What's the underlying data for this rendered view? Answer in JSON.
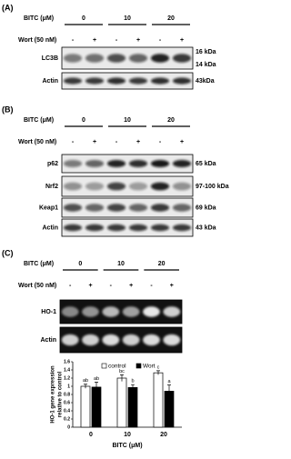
{
  "panels": [
    {
      "label": "(A)",
      "bitc_label": "BITC (μM)",
      "doses": [
        "0",
        "10",
        "20"
      ],
      "wort_label": "Wort (50 nM)",
      "wort_signs": [
        "-",
        "+",
        "-",
        "+",
        "-",
        "+"
      ],
      "blots": [
        {
          "name": "LC3B",
          "sizes": [
            "16 kDa",
            "14 kDa"
          ]
        },
        {
          "name": "Actin",
          "sizes": [
            "43kDa"
          ]
        }
      ]
    },
    {
      "label": "(B)",
      "bitc_label": "BITC (μM)",
      "doses": [
        "0",
        "10",
        "20"
      ],
      "wort_label": "Wort (50 nM)",
      "wort_signs": [
        "-",
        "+",
        "-",
        "+",
        "-",
        "+"
      ],
      "blots": [
        {
          "name": "p62",
          "sizes": [
            "65 kDa"
          ]
        },
        {
          "name": "Nrf2",
          "sizes": [
            "97-100 kDa"
          ]
        },
        {
          "name": "Keap1",
          "sizes": [
            "69 kDa"
          ]
        },
        {
          "name": "Actin",
          "sizes": [
            "43 kDa"
          ]
        }
      ]
    },
    {
      "label": "(C)",
      "bitc_label": "BITC (μM)",
      "doses": [
        "0",
        "10",
        "20"
      ],
      "wort_label": "Wort (50 nM)",
      "wort_signs": [
        "-",
        "+",
        "-",
        "+",
        "-",
        "+"
      ],
      "blots": [
        {
          "name": "HO-1"
        },
        {
          "name": "Actin"
        }
      ]
    }
  ],
  "chart_data": {
    "type": "bar",
    "categories": [
      "0",
      "10",
      "20"
    ],
    "xlabel": "BITC (μM)",
    "ylabel": [
      "HO-1 gene expression",
      "relative to control"
    ],
    "ylim": [
      0,
      1.6
    ],
    "yticks": [
      0,
      0.2,
      0.4,
      0.6,
      0.8,
      1,
      1.2,
      1.4,
      1.6
    ],
    "series": [
      {
        "name": "control",
        "color": "#ffffff",
        "values": [
          1.0,
          1.2,
          1.33
        ],
        "errors": [
          0.05,
          0.08,
          0.05
        ],
        "letters": [
          "ab",
          "bc",
          "c"
        ]
      },
      {
        "name": "Wort",
        "color": "#000000",
        "values": [
          0.98,
          0.97,
          0.88
        ],
        "errors": [
          0.12,
          0.07,
          0.15
        ],
        "letters": [
          "ab",
          "b",
          "a"
        ]
      }
    ]
  }
}
